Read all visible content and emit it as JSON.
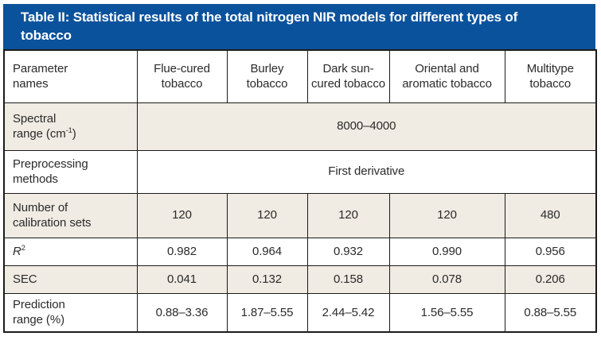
{
  "title": "Table II: Statistical results of the total nitrogen NIR models for different types of tobacco",
  "colors": {
    "title_bar_bg": "#0b529c",
    "title_bar_text": "#ffffff",
    "shaded_row_bg": "#f0ebe3",
    "border": "#1b1b1b",
    "text": "#2b2b2b"
  },
  "table": {
    "columns": [
      {
        "name": "parameter-names",
        "parts": [
          {
            "t": "Parameter"
          },
          {
            "br": true
          },
          {
            "t": "names"
          }
        ]
      },
      {
        "name": "flue-cured-tobacco",
        "parts": [
          {
            "t": "Flue-cured tobacco"
          }
        ]
      },
      {
        "name": "burley-tobacco",
        "parts": [
          {
            "t": "Burley tobacco"
          }
        ]
      },
      {
        "name": "dark-sun-cured-tobacco",
        "parts": [
          {
            "t": "Dark sun-cured tobacco"
          }
        ]
      },
      {
        "name": "oriental-and-aromatic-tobacco",
        "parts": [
          {
            "t": "Oriental and aromatic tobacco"
          }
        ]
      },
      {
        "name": "multitype-tobacco",
        "parts": [
          {
            "t": "Multitype tobacco"
          }
        ]
      }
    ],
    "rows": [
      {
        "name": "spectral-range",
        "label_parts": [
          {
            "t": "Spectral"
          },
          {
            "br": true
          },
          {
            "t": "range (cm"
          },
          {
            "t": "-1",
            "sup": true
          },
          {
            "t": ")"
          }
        ],
        "merged_value": "8000–4000"
      },
      {
        "name": "preprocessing-methods",
        "label_parts": [
          {
            "t": "Preprocessing"
          },
          {
            "br": true
          },
          {
            "t": "methods"
          }
        ],
        "merged_value": "First derivative"
      },
      {
        "name": "number-of-calibration-sets",
        "label_parts": [
          {
            "t": "Number of"
          },
          {
            "br": true
          },
          {
            "t": "calibration sets"
          }
        ],
        "values": [
          "120",
          "120",
          "120",
          "120",
          "480"
        ]
      },
      {
        "name": "r-squared",
        "label_parts": [
          {
            "t": "R",
            "italic": true
          },
          {
            "t": "2",
            "sup": true
          }
        ],
        "values": [
          "0.982",
          "0.964",
          "0.932",
          "0.990",
          "0.956"
        ]
      },
      {
        "name": "sec",
        "label_parts": [
          {
            "t": "SEC"
          }
        ],
        "values": [
          "0.041",
          "0.132",
          "0.158",
          "0.078",
          "0.206"
        ]
      },
      {
        "name": "prediction-range",
        "label_parts": [
          {
            "t": "Prediction"
          },
          {
            "br": true
          },
          {
            "t": "range (%)"
          }
        ],
        "values": [
          "0.88–3.36",
          "1.87–5.55",
          "2.44–5.42",
          "1.56–5.55",
          "0.88–5.55"
        ]
      }
    ]
  }
}
